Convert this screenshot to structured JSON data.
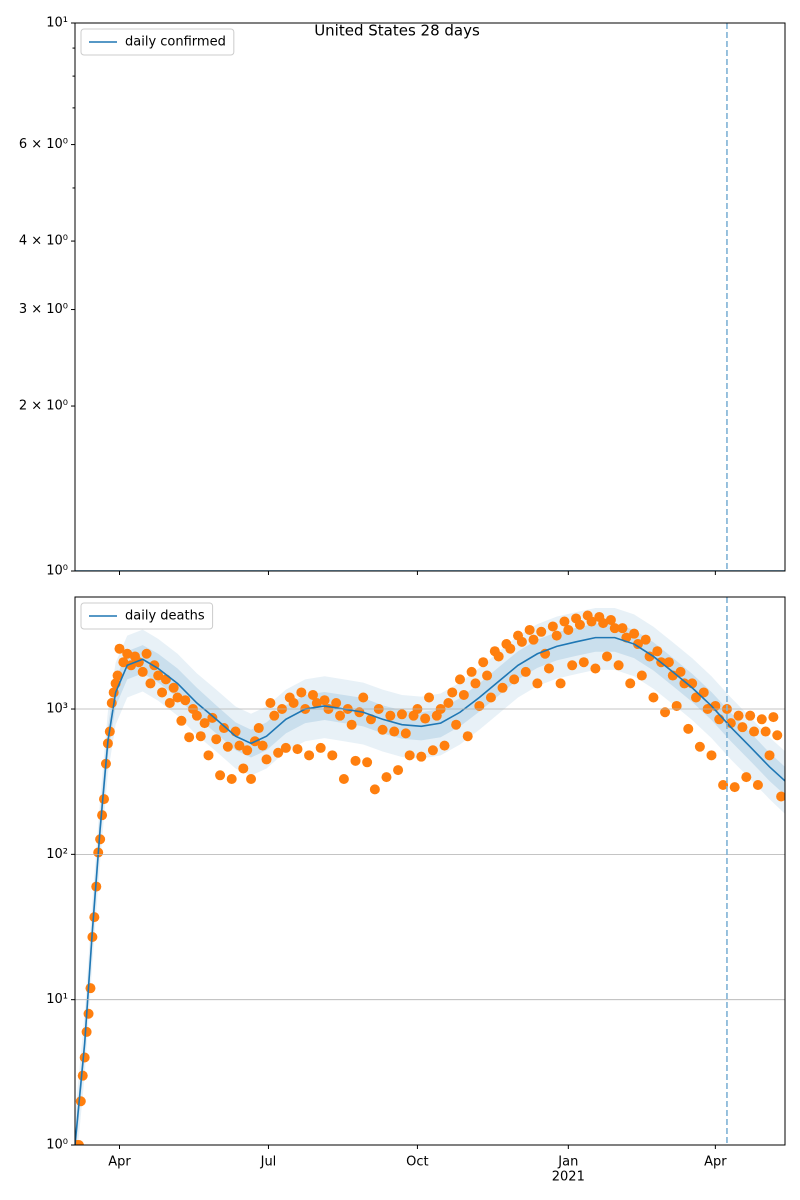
{
  "chart_data": [
    {
      "type": "line",
      "title": "United States 28 days",
      "log_y": true,
      "legend": "upper left",
      "ylim": [
        1,
        10
      ],
      "yticks": [
        {
          "value": 1,
          "label": "10⁰"
        },
        {
          "value": 2,
          "label": "2 × 10⁰"
        },
        {
          "value": 3,
          "label": "3 × 10⁰"
        },
        {
          "value": 4,
          "label": "4 × 10⁰"
        },
        {
          "value": 6,
          "label": "6 × 10⁰"
        },
        {
          "value": 10,
          "label": "10¹"
        }
      ],
      "yticks_minor": [
        5,
        7,
        8,
        9
      ],
      "vline": 354,
      "vline_color": "#7fb2d5",
      "series": [
        {
          "name": "daily confirmed",
          "color": "#1f77b4",
          "x": [
            17,
            384
          ],
          "values": [
            1,
            1
          ]
        }
      ]
    },
    {
      "type": "line",
      "log_y": true,
      "legend": "upper left",
      "grid": true,
      "xlim": [
        17,
        384
      ],
      "xticks": [
        {
          "value": 40,
          "label": "Apr"
        },
        {
          "value": 117,
          "label": "Jul"
        },
        {
          "value": 194,
          "label": "Oct"
        },
        {
          "value": 272,
          "label": "Jan"
        },
        {
          "value": 348,
          "label": "Apr"
        }
      ],
      "year_label": "2021",
      "ylim": [
        1,
        5900
      ],
      "yticks": [
        {
          "value": 1,
          "label": "10⁰"
        },
        {
          "value": 10,
          "label": "10¹"
        },
        {
          "value": 100,
          "label": "10²"
        },
        {
          "value": 1000,
          "label": "10³"
        }
      ],
      "vline": 354,
      "vline_color": "#7fb2d5",
      "series": [
        {
          "name": "daily deaths",
          "color": "#1f77b4",
          "x": [
            17,
            22,
            26,
            30,
            34,
            38,
            44,
            52,
            60,
            70,
            80,
            90,
            100,
            108,
            116,
            126,
            136,
            146,
            156,
            166,
            176,
            186,
            196,
            206,
            216,
            226,
            236,
            246,
            256,
            266,
            276,
            286,
            296,
            306,
            316,
            326,
            336,
            346,
            356,
            366,
            376,
            384
          ],
          "values": [
            1,
            5,
            30,
            150,
            600,
            1300,
            2000,
            2200,
            1900,
            1500,
            1100,
            850,
            650,
            580,
            650,
            850,
            1000,
            1050,
            1000,
            950,
            850,
            780,
            760,
            800,
            950,
            1200,
            1550,
            2000,
            2400,
            2700,
            2900,
            3100,
            3100,
            2800,
            2300,
            1800,
            1400,
            1050,
            750,
            550,
            400,
            320
          ],
          "inner_low": [
            0.8,
            4,
            24,
            120,
            480,
            1040,
            1600,
            1760,
            1520,
            1200,
            880,
            680,
            520,
            464,
            520,
            680,
            800,
            840,
            800,
            760,
            680,
            624,
            608,
            640,
            760,
            960,
            1240,
            1600,
            1920,
            2160,
            2320,
            2480,
            2480,
            2240,
            1840,
            1440,
            1120,
            840,
            600,
            440,
            320,
            256
          ],
          "inner_high": [
            1.2,
            6,
            38,
            190,
            750,
            1600,
            2500,
            2750,
            2400,
            1900,
            1400,
            1060,
            810,
            720,
            810,
            1060,
            1250,
            1310,
            1250,
            1190,
            1060,
            980,
            950,
            1000,
            1190,
            1500,
            1940,
            2500,
            3000,
            3380,
            3620,
            3880,
            3880,
            3500,
            2880,
            2250,
            1750,
            1310,
            940,
            690,
            500,
            400
          ],
          "outer_low": [
            0.6,
            3,
            18,
            90,
            360,
            780,
            1200,
            1320,
            1140,
            900,
            660,
            510,
            390,
            348,
            390,
            510,
            600,
            630,
            600,
            570,
            510,
            468,
            456,
            480,
            570,
            720,
            930,
            1200,
            1440,
            1620,
            1740,
            1860,
            1860,
            1680,
            1380,
            1080,
            840,
            630,
            450,
            330,
            240,
            190
          ],
          "outer_high": [
            1.6,
            8,
            48,
            240,
            960,
            2080,
            3200,
            3520,
            3040,
            2400,
            1760,
            1360,
            1040,
            928,
            1040,
            1360,
            1600,
            1680,
            1600,
            1520,
            1360,
            1248,
            1216,
            1280,
            1520,
            1920,
            2480,
            3200,
            3840,
            4320,
            4640,
            4960,
            4960,
            4480,
            3680,
            2880,
            2240,
            1680,
            1200,
            880,
            640,
            512
          ]
        }
      ],
      "observed": {
        "color": "#ff7f0e",
        "x": [
          18,
          19,
          20,
          21,
          22,
          23,
          24,
          25,
          26,
          27,
          28,
          29,
          30,
          31,
          32,
          33,
          34,
          35,
          36,
          37,
          38,
          39,
          40,
          42,
          44,
          46,
          48,
          50,
          52,
          54,
          56,
          58,
          60,
          62,
          64,
          66,
          68,
          70,
          72,
          74,
          76,
          78,
          80,
          82,
          84,
          86,
          88,
          90,
          92,
          94,
          96,
          98,
          100,
          102,
          104,
          106,
          108,
          110,
          112,
          114,
          116,
          118,
          120,
          122,
          124,
          126,
          128,
          130,
          132,
          134,
          136,
          138,
          140,
          142,
          144,
          146,
          148,
          150,
          152,
          154,
          156,
          158,
          160,
          162,
          164,
          166,
          168,
          170,
          172,
          174,
          176,
          178,
          180,
          182,
          184,
          186,
          188,
          190,
          192,
          194,
          196,
          198,
          200,
          202,
          204,
          206,
          208,
          210,
          212,
          214,
          216,
          218,
          220,
          222,
          224,
          226,
          228,
          230,
          232,
          234,
          236,
          238,
          240,
          242,
          244,
          246,
          248,
          250,
          252,
          254,
          256,
          258,
          260,
          262,
          264,
          266,
          268,
          270,
          272,
          274,
          276,
          278,
          280,
          282,
          284,
          286,
          288,
          290,
          292,
          294,
          296,
          298,
          300,
          302,
          304,
          306,
          308,
          310,
          312,
          314,
          316,
          318,
          320,
          322,
          324,
          326,
          328,
          330,
          332,
          334,
          336,
          338,
          340,
          342,
          344,
          346,
          348,
          350,
          352,
          354,
          356,
          358,
          360,
          362,
          364,
          366,
          368,
          370,
          372,
          374,
          376,
          378,
          380,
          382
        ],
        "values": [
          1,
          1,
          2,
          3,
          4,
          6,
          8,
          12,
          27,
          37,
          60,
          103,
          127,
          186,
          240,
          420,
          580,
          700,
          1100,
          1300,
          1500,
          1700,
          2600,
          2100,
          2400,
          2000,
          2300,
          2100,
          1800,
          2400,
          1500,
          2000,
          1700,
          1300,
          1600,
          1100,
          1400,
          1200,
          830,
          1150,
          640,
          1000,
          900,
          650,
          800,
          480,
          870,
          620,
          350,
          740,
          550,
          330,
          700,
          560,
          390,
          520,
          330,
          600,
          740,
          560,
          450,
          1100,
          900,
          500,
          1000,
          540,
          1200,
          1100,
          530,
          1300,
          1000,
          480,
          1250,
          1100,
          540,
          1150,
          1000,
          480,
          1100,
          900,
          330,
          1000,
          780,
          440,
          950,
          1200,
          430,
          850,
          280,
          1000,
          720,
          340,
          900,
          700,
          380,
          920,
          680,
          480,
          900,
          1000,
          470,
          860,
          1200,
          520,
          900,
          1000,
          560,
          1100,
          1300,
          780,
          1600,
          1250,
          650,
          1800,
          1500,
          1050,
          2100,
          1700,
          1200,
          2500,
          2300,
          1400,
          2800,
          2600,
          1600,
          3200,
          2900,
          1800,
          3500,
          3000,
          1500,
          3400,
          2400,
          1900,
          3700,
          3200,
          1500,
          4000,
          3500,
          2000,
          4200,
          3800,
          2100,
          4400,
          4000,
          1900,
          4300,
          3900,
          2300,
          4100,
          3600,
          2000,
          3600,
          3100,
          1500,
          3300,
          2800,
          1700,
          3000,
          2300,
          1200,
          2500,
          2100,
          950,
          2100,
          1700,
          1050,
          1800,
          1500,
          730,
          1500,
          1200,
          550,
          1300,
          1000,
          480,
          1050,
          850,
          300,
          1000,
          800,
          290,
          900,
          750,
          340,
          900,
          700,
          300,
          850,
          700,
          480,
          880,
          660,
          250
        ]
      }
    }
  ]
}
